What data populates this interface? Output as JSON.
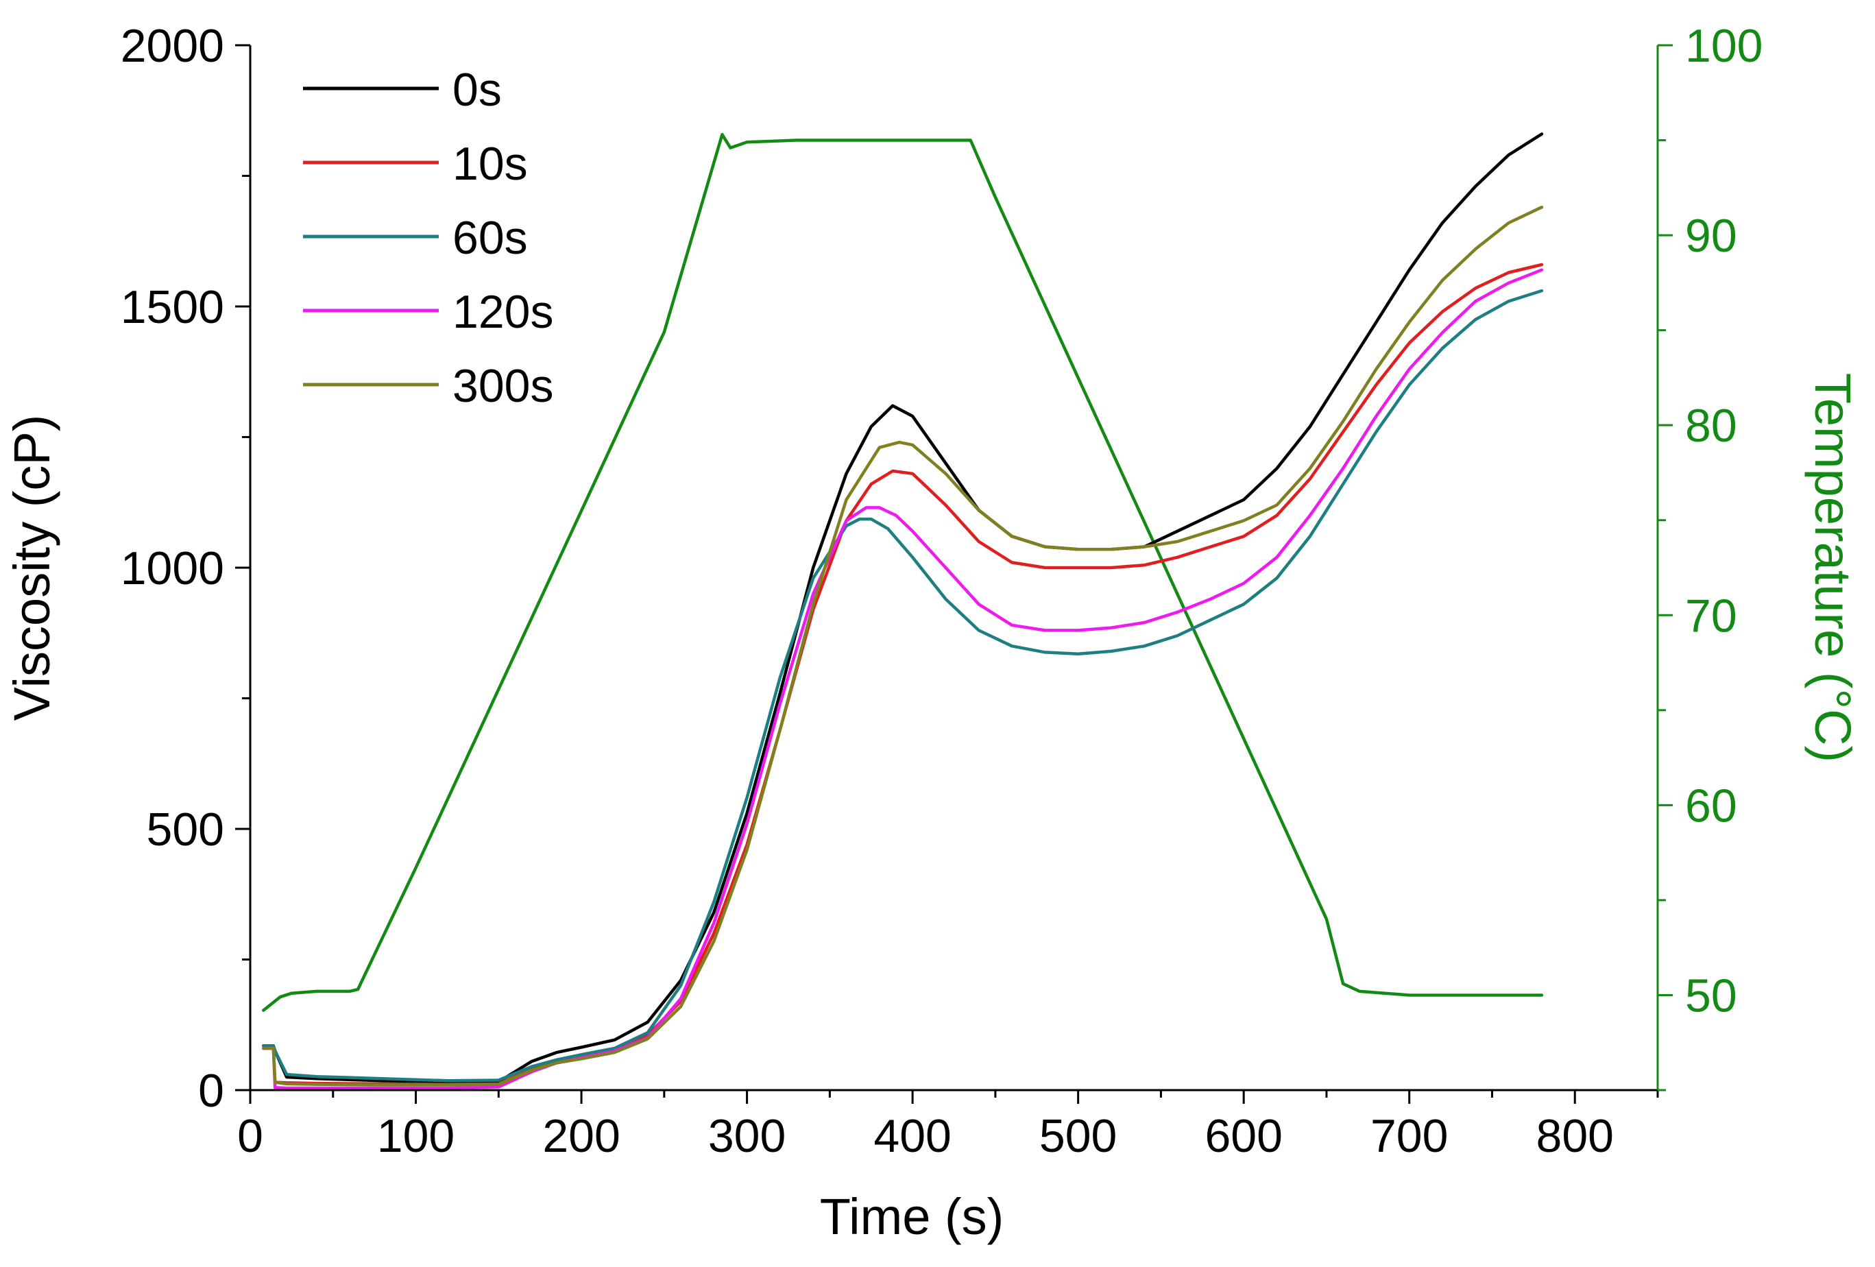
{
  "chart_data": {
    "type": "line",
    "x_axis": {
      "label": "Time (s)",
      "range": [
        0,
        850
      ],
      "ticks": [
        0,
        100,
        200,
        300,
        400,
        500,
        600,
        700,
        800
      ],
      "tick_labels": [
        "0",
        "100",
        "200",
        "300",
        "400",
        "500",
        "600",
        "700",
        "800"
      ]
    },
    "y_axis_left": {
      "label": "Viscosity (cP)",
      "range": [
        0,
        2000
      ],
      "ticks": [
        0,
        500,
        1000,
        1500,
        2000
      ],
      "tick_labels": [
        "0",
        "500",
        "1000",
        "1500",
        "2000"
      ],
      "minor_step": 250
    },
    "y_axis_right": {
      "label": "Temperature (°C)",
      "color": "#138a13",
      "range": [
        45,
        100
      ],
      "ticks": [
        50,
        60,
        70,
        80,
        90,
        100
      ],
      "tick_labels": [
        "50",
        "60",
        "70",
        "80",
        "90",
        "100"
      ],
      "minor_step": 5
    },
    "legend_position": "top-left",
    "series": [
      {
        "name": "0s",
        "color": "#000000",
        "axis": "left",
        "x": [
          8,
          14,
          15,
          22,
          40,
          80,
          120,
          150,
          170,
          185,
          200,
          220,
          240,
          260,
          280,
          300,
          320,
          340,
          360,
          375,
          388,
          400,
          420,
          440,
          460,
          480,
          500,
          520,
          540,
          560,
          580,
          600,
          620,
          640,
          660,
          680,
          700,
          720,
          740,
          760,
          780
        ],
        "values": [
          85,
          85,
          75,
          25,
          22,
          18,
          15,
          16,
          55,
          72,
          82,
          96,
          130,
          210,
          340,
          530,
          760,
          1000,
          1180,
          1270,
          1310,
          1290,
          1200,
          1110,
          1060,
          1040,
          1035,
          1035,
          1040,
          1070,
          1100,
          1130,
          1190,
          1270,
          1370,
          1470,
          1570,
          1660,
          1730,
          1790,
          1830
        ]
      },
      {
        "name": "10s",
        "color": "#e02020",
        "axis": "left",
        "x": [
          8,
          14,
          15,
          22,
          40,
          80,
          120,
          150,
          170,
          185,
          200,
          220,
          240,
          260,
          280,
          300,
          320,
          340,
          360,
          375,
          388,
          400,
          420,
          440,
          460,
          480,
          500,
          520,
          540,
          560,
          580,
          600,
          620,
          640,
          660,
          680,
          700,
          720,
          740,
          760,
          780
        ],
        "values": [
          80,
          80,
          15,
          14,
          13,
          12,
          11,
          12,
          40,
          55,
          65,
          78,
          105,
          170,
          300,
          470,
          690,
          920,
          1090,
          1160,
          1185,
          1180,
          1120,
          1050,
          1010,
          1000,
          1000,
          1000,
          1005,
          1020,
          1040,
          1060,
          1100,
          1170,
          1260,
          1350,
          1430,
          1490,
          1535,
          1565,
          1580
        ]
      },
      {
        "name": "60s",
        "color": "#1e7f82",
        "axis": "left",
        "x": [
          8,
          14,
          15,
          22,
          40,
          80,
          120,
          150,
          170,
          185,
          200,
          220,
          240,
          260,
          280,
          300,
          320,
          340,
          360,
          368,
          375,
          385,
          400,
          420,
          440,
          460,
          480,
          500,
          520,
          540,
          560,
          580,
          600,
          620,
          640,
          660,
          680,
          700,
          720,
          740,
          760,
          780
        ],
        "values": [
          85,
          85,
          75,
          30,
          26,
          22,
          18,
          19,
          45,
          58,
          68,
          80,
          110,
          200,
          360,
          560,
          790,
          980,
          1080,
          1093,
          1093,
          1075,
          1020,
          940,
          880,
          850,
          838,
          835,
          840,
          850,
          870,
          900,
          930,
          980,
          1060,
          1160,
          1260,
          1350,
          1420,
          1475,
          1510,
          1530
        ]
      },
      {
        "name": "120s",
        "color": "#ee1bee",
        "axis": "left",
        "x": [
          8,
          14,
          15,
          22,
          40,
          80,
          120,
          150,
          170,
          185,
          200,
          220,
          240,
          260,
          280,
          300,
          320,
          340,
          360,
          372,
          380,
          390,
          400,
          420,
          440,
          460,
          480,
          500,
          520,
          540,
          560,
          580,
          600,
          620,
          640,
          660,
          680,
          700,
          720,
          740,
          760,
          780
        ],
        "values": [
          80,
          80,
          5,
          4,
          4,
          4,
          4,
          6,
          35,
          52,
          62,
          75,
          100,
          175,
          320,
          510,
          740,
          950,
          1090,
          1115,
          1115,
          1100,
          1070,
          1000,
          930,
          890,
          880,
          880,
          885,
          895,
          915,
          940,
          970,
          1020,
          1100,
          1190,
          1290,
          1380,
          1450,
          1510,
          1545,
          1570
        ]
      },
      {
        "name": "300s",
        "color": "#808020",
        "axis": "left",
        "x": [
          8,
          14,
          15,
          22,
          40,
          80,
          120,
          150,
          170,
          185,
          200,
          220,
          240,
          260,
          280,
          300,
          320,
          340,
          360,
          380,
          392,
          400,
          420,
          440,
          460,
          480,
          500,
          520,
          540,
          560,
          580,
          600,
          620,
          640,
          660,
          680,
          700,
          720,
          740,
          760,
          780
        ],
        "values": [
          80,
          80,
          15,
          12,
          11,
          10,
          10,
          11,
          38,
          52,
          60,
          72,
          98,
          160,
          285,
          460,
          690,
          930,
          1130,
          1230,
          1240,
          1235,
          1180,
          1110,
          1060,
          1040,
          1035,
          1035,
          1040,
          1050,
          1070,
          1090,
          1120,
          1190,
          1280,
          1380,
          1470,
          1550,
          1610,
          1660,
          1690
        ]
      },
      {
        "name": "Temperature",
        "color": "#138a13",
        "axis": "right",
        "show_in_legend": false,
        "x": [
          8,
          18,
          25,
          40,
          60,
          65,
          100,
          150,
          200,
          250,
          285,
          290,
          300,
          330,
          400,
          435,
          450,
          500,
          550,
          600,
          650,
          660,
          670,
          700,
          740,
          780
        ],
        "values": [
          49.2,
          49.9,
          50.1,
          50.2,
          50.2,
          50.3,
          56.7,
          66.1,
          75.5,
          84.9,
          95.3,
          94.6,
          94.9,
          95.0,
          95.0,
          95.0,
          92.0,
          82.5,
          73.0,
          63.5,
          54.0,
          50.6,
          50.2,
          50.0,
          50.0,
          50.0
        ]
      }
    ]
  }
}
